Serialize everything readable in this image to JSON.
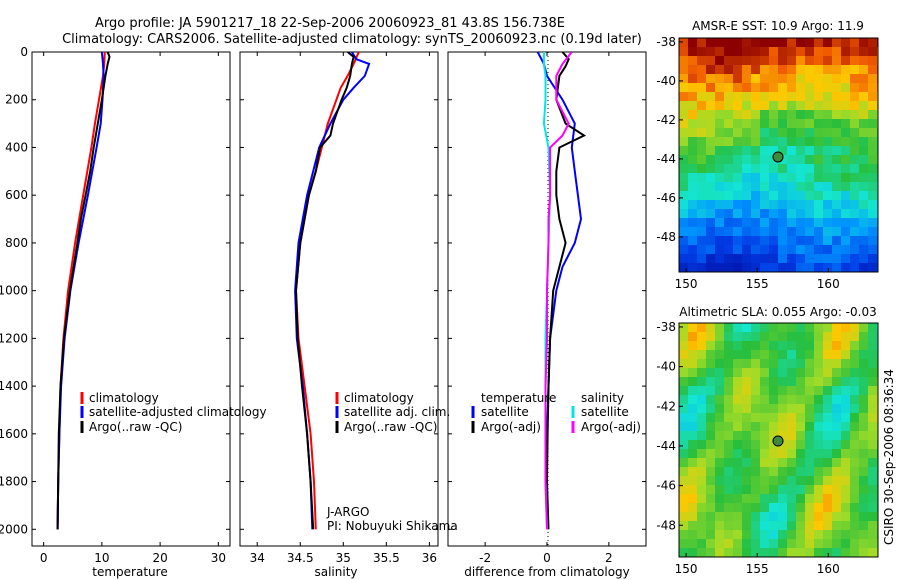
{
  "figure": {
    "title_line1": "Argo profile: JA 5901217_18 22-Sep-2006 20060923_81 43.8S 156.738E",
    "title_line2": "Climatology: CARS2006. Satellite-adjusted climatology: synTS_20060923.nc (0.19d later)",
    "side_label": "CSIRO 30-Sep-2006 08:36:34",
    "pi_line1": "J-ARGO",
    "pi_line2": "PI: Nobuyuki Shikama"
  },
  "colors": {
    "climatology": "#ff0000",
    "satellite": "#0000ff",
    "argo": "#000000",
    "argo_salinity_diff": "#ff00ff",
    "satellite_salinity_diff": "#00e5e5"
  },
  "chart_data": [
    {
      "type": "line",
      "xlabel": "temperature",
      "ylabel": "",
      "xlim": [
        -2,
        32
      ],
      "ylim": [
        2070,
        0
      ],
      "xticks": [
        0,
        10,
        20,
        30
      ],
      "yticks": [
        0,
        200,
        400,
        600,
        800,
        1000,
        1200,
        1400,
        1600,
        1800,
        2000
      ],
      "legend": [
        "climatology",
        "satellite-adjusted climatology",
        "Argo(..raw -QC)"
      ],
      "series": [
        {
          "name": "climatology",
          "color": "#ff0000",
          "depth": [
            0,
            50,
            100,
            200,
            300,
            400,
            600,
            800,
            1000,
            1200,
            1400,
            1600,
            1800,
            2000
          ],
          "values": [
            10.5,
            10.4,
            10.2,
            9.5,
            8.8,
            8.2,
            6.8,
            5.4,
            4.2,
            3.4,
            2.9,
            2.7,
            2.5,
            2.4
          ]
        },
        {
          "name": "satellite-adjusted climatology",
          "color": "#0000ff",
          "depth": [
            0,
            50,
            100,
            200,
            300,
            400,
            600,
            800,
            1000,
            1200,
            1400,
            1600,
            1800,
            2000
          ],
          "values": [
            10.0,
            10.2,
            10.3,
            10.1,
            9.8,
            9.1,
            7.6,
            6.0,
            4.6,
            3.6,
            3.0,
            2.7,
            2.5,
            2.4
          ]
        },
        {
          "name": "Argo(..raw -QC)",
          "color": "#000000",
          "depth": [
            0,
            20,
            50,
            100,
            200,
            300,
            400,
            500,
            600,
            700,
            800,
            1000,
            1200,
            1400,
            1600,
            1800,
            2000
          ],
          "values": [
            11.0,
            11.3,
            11.0,
            10.6,
            10.0,
            9.3,
            8.6,
            8.0,
            7.2,
            6.4,
            5.8,
            4.5,
            3.5,
            2.9,
            2.6,
            2.5,
            2.4
          ]
        }
      ]
    },
    {
      "type": "line",
      "xlabel": "salinity",
      "xlim": [
        33.8,
        36.1
      ],
      "ylim": [
        2070,
        0
      ],
      "xticks": [
        34,
        34.5,
        35,
        35.5,
        36
      ],
      "legend": [
        "climatology",
        "satellite adj. clim.",
        "Argo(..raw -QC)"
      ],
      "series": [
        {
          "name": "climatology",
          "color": "#ff0000",
          "depth": [
            0,
            50,
            100,
            150,
            200,
            300,
            400,
            500,
            600,
            800,
            1000,
            1200,
            1400,
            1600,
            1800,
            2000
          ],
          "values": [
            35.18,
            35.12,
            35.05,
            34.97,
            34.92,
            34.82,
            34.75,
            34.68,
            34.6,
            34.5,
            34.45,
            34.48,
            34.55,
            34.62,
            34.66,
            34.68
          ]
        },
        {
          "name": "satellite adj. clim.",
          "color": "#0000ff",
          "depth": [
            0,
            30,
            50,
            100,
            150,
            200,
            300,
            400,
            500,
            600,
            800,
            1000,
            1200,
            1400,
            1600,
            1800,
            2000
          ],
          "values": [
            35.1,
            35.15,
            35.3,
            35.25,
            35.12,
            35.0,
            34.85,
            34.72,
            34.65,
            34.58,
            34.48,
            34.44,
            34.46,
            34.53,
            34.58,
            34.62,
            34.64
          ]
        },
        {
          "name": "Argo(..raw -QC)",
          "color": "#000000",
          "depth": [
            0,
            20,
            50,
            100,
            150,
            200,
            300,
            350,
            400,
            500,
            600,
            800,
            1000,
            1200,
            1400,
            1600,
            1800,
            2000
          ],
          "values": [
            35.05,
            35.12,
            35.1,
            35.08,
            35.04,
            34.98,
            34.88,
            34.85,
            34.73,
            34.68,
            34.6,
            34.5,
            34.45,
            34.47,
            34.52,
            34.58,
            34.62,
            34.65
          ]
        }
      ]
    },
    {
      "type": "line",
      "xlabel": "difference from climatology",
      "xlim": [
        -3.2,
        3.2
      ],
      "ylim": [
        2070,
        0
      ],
      "xticks": [
        -2,
        0,
        2
      ],
      "legend_titles": [
        "temperature",
        "salinity"
      ],
      "legend": [
        "satellite",
        "Argo(-adj)",
        "satellite",
        "Argo(-adj)"
      ],
      "series": [
        {
          "name": "satellite",
          "quantity": "temperature",
          "color": "#0000ff",
          "depth": [
            0,
            50,
            100,
            200,
            300,
            400,
            500,
            600,
            700,
            800,
            900,
            1000,
            1200,
            1400,
            1600,
            1800,
            2000
          ],
          "values": [
            -0.3,
            -0.1,
            0.0,
            0.5,
            0.9,
            0.8,
            0.9,
            1.0,
            1.1,
            0.9,
            0.5,
            0.3,
            0.1,
            0.05,
            0.0,
            0.0,
            0.0
          ]
        },
        {
          "name": "Argo(-adj)",
          "quantity": "temperature",
          "color": "#000000",
          "depth": [
            0,
            30,
            60,
            100,
            200,
            300,
            350,
            400,
            500,
            600,
            700,
            800,
            900,
            1000,
            1200,
            1400,
            1600,
            1800,
            2000
          ],
          "values": [
            0.5,
            0.7,
            0.6,
            0.4,
            0.3,
            0.6,
            1.2,
            0.4,
            0.3,
            0.3,
            0.4,
            0.6,
            0.4,
            0.2,
            0.1,
            0.05,
            0.02,
            0.0,
            0.05
          ]
        },
        {
          "name": "satellite",
          "quantity": "salinity",
          "color": "#00e5e5",
          "depth": [
            0,
            50,
            100,
            200,
            300,
            400,
            600,
            800,
            1000,
            1200,
            1400,
            1600,
            1800,
            2000
          ],
          "values": [
            -0.1,
            -0.1,
            -0.05,
            -0.05,
            -0.1,
            0.05,
            0.1,
            0.05,
            0.0,
            -0.05,
            -0.05,
            -0.05,
            -0.05,
            0.0
          ]
        },
        {
          "name": "Argo(-adj)",
          "quantity": "salinity",
          "color": "#ff00ff",
          "depth": [
            0,
            50,
            100,
            200,
            300,
            350,
            400,
            500,
            600,
            700,
            800,
            1000,
            1200,
            1400,
            1600,
            1800,
            2000
          ],
          "values": [
            0.8,
            0.5,
            0.3,
            0.3,
            0.7,
            0.5,
            0.1,
            0.1,
            0.1,
            0.05,
            0.05,
            0.0,
            0.0,
            -0.05,
            -0.05,
            -0.05,
            0.0
          ]
        }
      ]
    },
    {
      "type": "heatmap",
      "title": "AMSR-E SST: 10.9 Argo: 11.9",
      "xlim": [
        149.5,
        163.5
      ],
      "ylim": [
        -49.8,
        -37.8
      ],
      "xticks": [
        150,
        155,
        160
      ],
      "yticks": [
        -38,
        -40,
        -42,
        -44,
        -46,
        -48
      ],
      "marker": {
        "lon": 156.738,
        "lat": -43.8
      }
    },
    {
      "type": "heatmap",
      "title": "Altimetric SLA: 0.055 Argo: -0.03",
      "xlim": [
        149.5,
        163.5
      ],
      "ylim": [
        -49.6,
        -37.8
      ],
      "xticks": [
        150,
        155,
        160
      ],
      "yticks": [
        -38,
        -40,
        -42,
        -44,
        -46,
        -48
      ],
      "marker": {
        "lon": 156.738,
        "lat": -43.8
      }
    }
  ]
}
